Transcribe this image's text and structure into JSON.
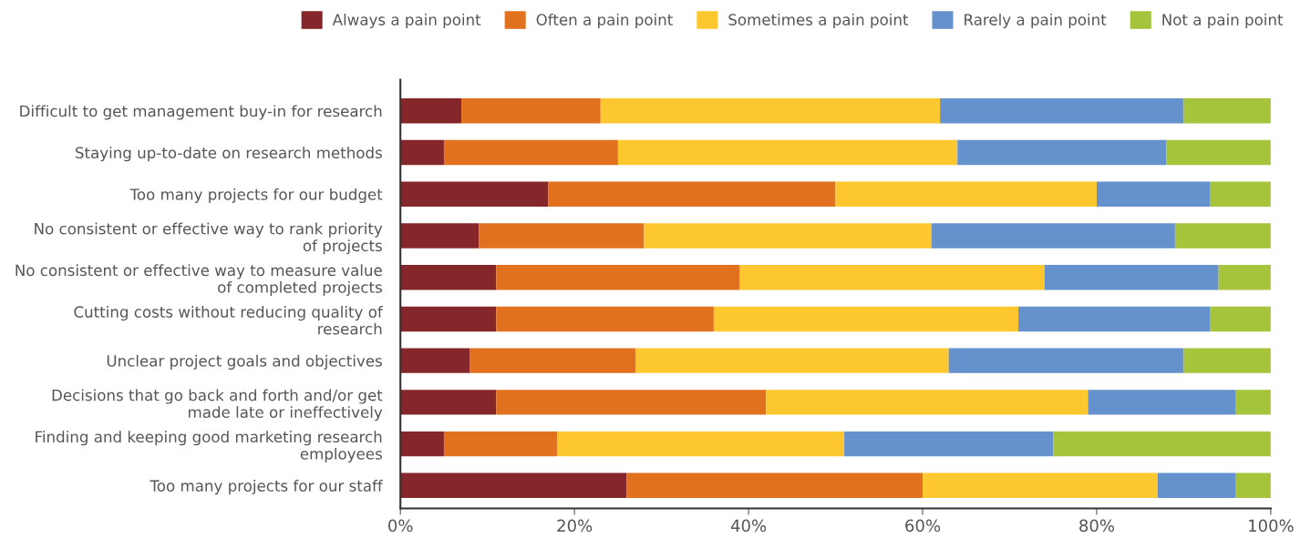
{
  "chart_data": {
    "type": "bar",
    "orientation": "horizontal",
    "stacked": true,
    "categories": [
      "Difficult to get management buy-in for research",
      "Staying up-to-date on research methods",
      "Too many projects for our budget",
      "No consistent or effective way to rank priority\nof projects",
      "No consistent or effective way to measure value\nof completed projects",
      "Cutting costs without reducing quality of\nresearch",
      "Unclear project goals and objectives",
      "Decisions that go back and forth and/or get\nmade late or ineffectively",
      "Finding and keeping good marketing research\nemployees",
      "Too many projects for our staff"
    ],
    "series": [
      {
        "name": "Always a pain point",
        "color": "#85262b",
        "values": [
          7,
          5,
          17,
          9,
          11,
          11,
          8,
          11,
          5,
          26
        ]
      },
      {
        "name": "Often a pain point",
        "color": "#e2711f",
        "values": [
          16,
          20,
          33,
          19,
          28,
          25,
          19,
          31,
          13,
          34
        ]
      },
      {
        "name": "Sometimes a pain point",
        "color": "#fdc82f",
        "values": [
          39,
          39,
          30,
          33,
          35,
          35,
          36,
          37,
          33,
          27
        ]
      },
      {
        "name": "Rarely a pain point",
        "color": "#6592cc",
        "values": [
          28,
          24,
          13,
          28,
          20,
          22,
          27,
          17,
          24,
          9
        ]
      },
      {
        "name": "Not a pain point",
        "color": "#a5c33b",
        "values": [
          10,
          12,
          7,
          11,
          6,
          7,
          10,
          4,
          25,
          4
        ]
      }
    ],
    "xlim": [
      0,
      100
    ],
    "xticks": [
      {
        "value": 0,
        "label": "0%"
      },
      {
        "value": 20,
        "label": "20%"
      },
      {
        "value": 40,
        "label": "40%"
      },
      {
        "value": 60,
        "label": "60%"
      },
      {
        "value": 80,
        "label": "80%"
      },
      {
        "value": 100,
        "label": "100%"
      }
    ],
    "grid": false,
    "legend": "top"
  }
}
